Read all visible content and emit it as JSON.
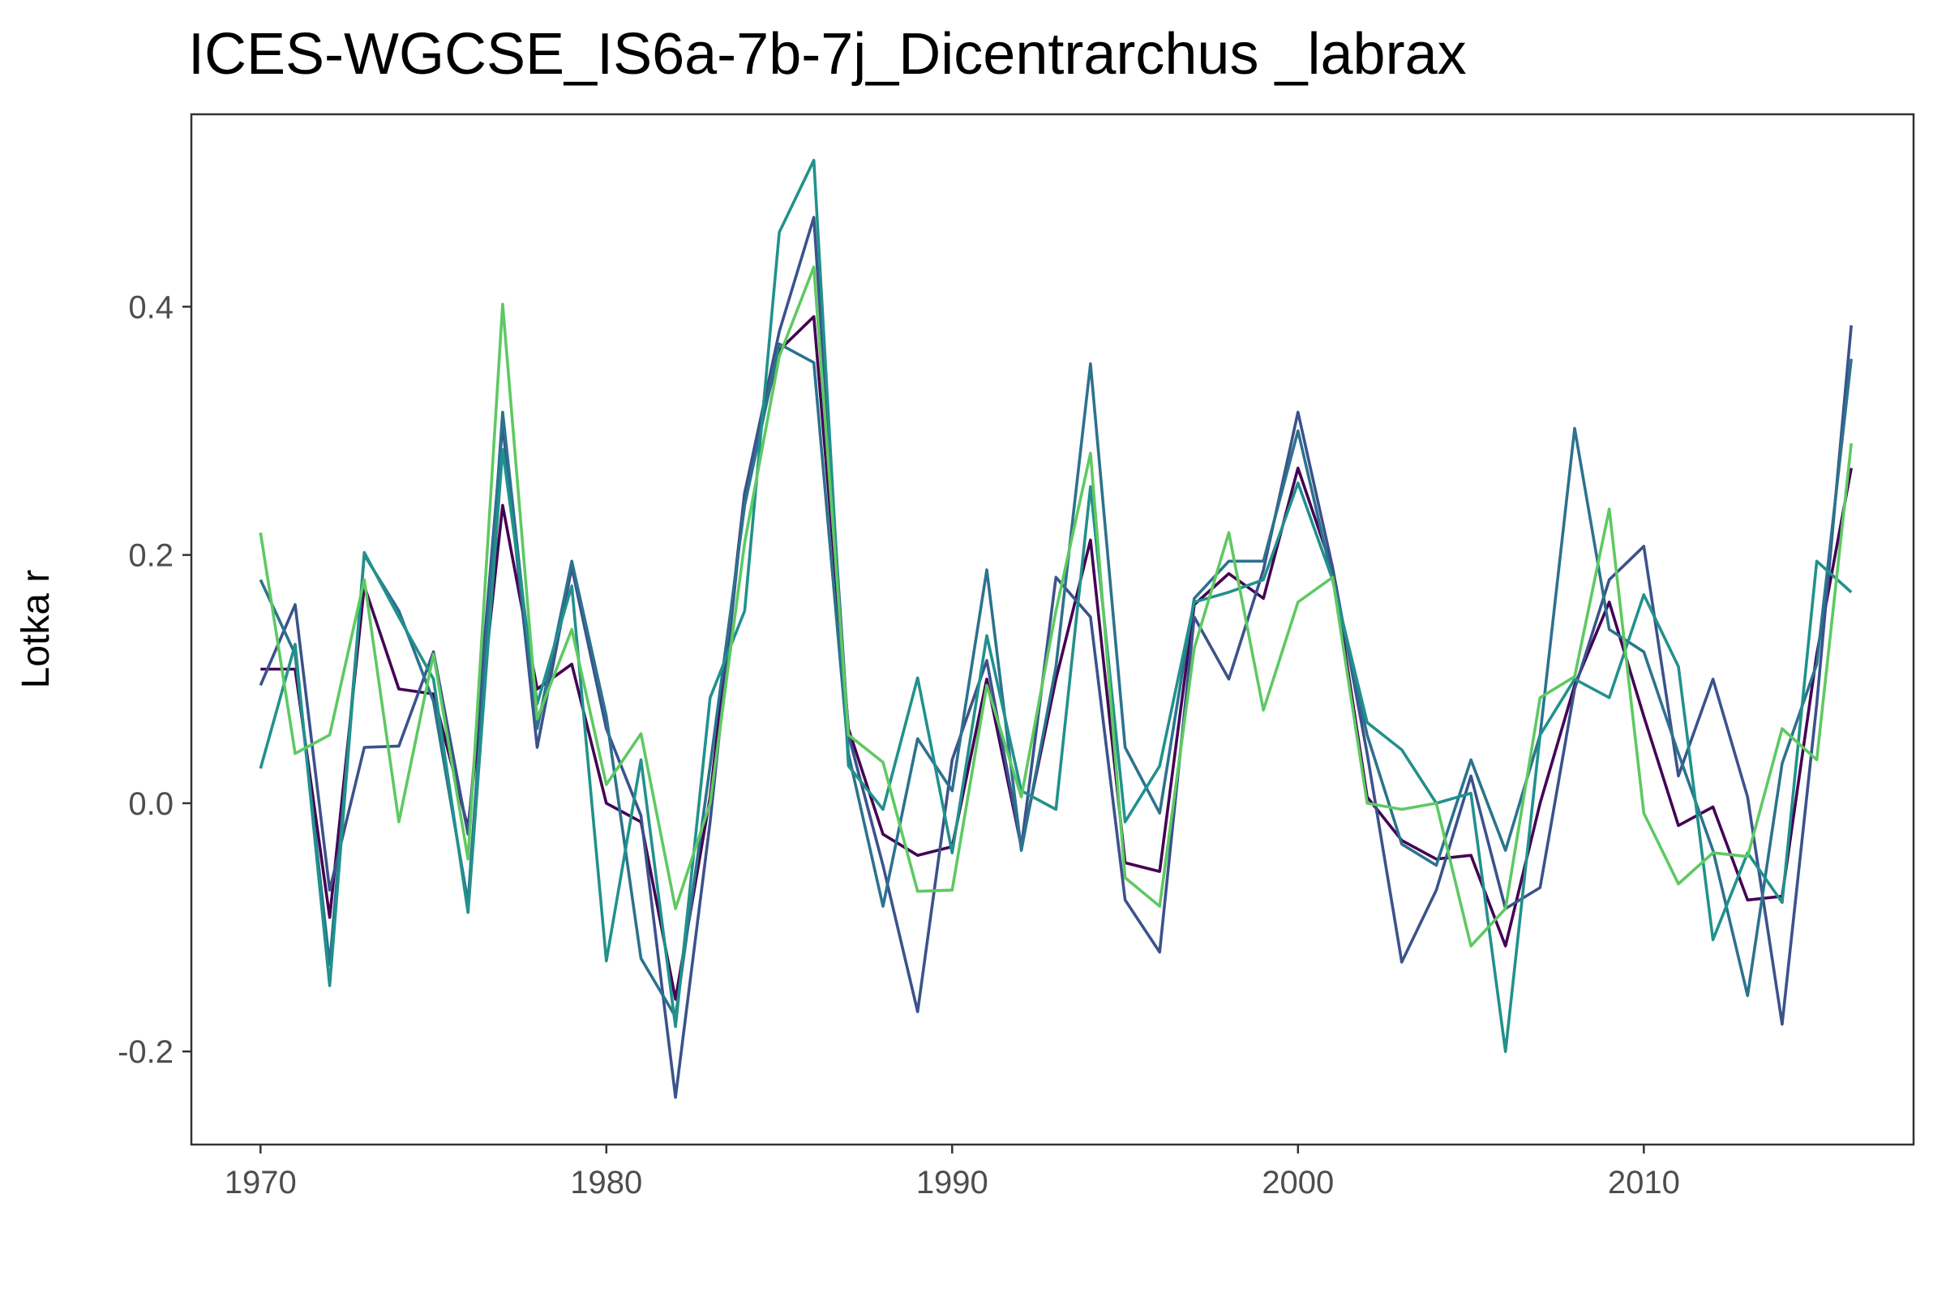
{
  "chart_data": {
    "type": "line",
    "title": "ICES-WGCSE_IS6a-7b-7j_Dicentrarchus _labrax",
    "xlabel": "",
    "ylabel": "Lotka r",
    "xlim": [
      1968,
      2017.8
    ],
    "ylim": [
      -0.275,
      0.555
    ],
    "x_ticks": [
      1970,
      1980,
      1990,
      2000,
      2010
    ],
    "y_ticks": [
      -0.2,
      0.0,
      0.2,
      0.4
    ],
    "y_tick_labels": [
      "-0.2",
      "0.0",
      "0.2",
      "0.4"
    ],
    "grid": false,
    "legend": "none",
    "x": [
      1970,
      1971,
      1972,
      1973,
      1974,
      1975,
      1976,
      1977,
      1978,
      1979,
      1980,
      1981,
      1982,
      1983,
      1984,
      1985,
      1986,
      1987,
      1988,
      1989,
      1990,
      1991,
      1992,
      1993,
      1994,
      1995,
      1996,
      1997,
      1998,
      1999,
      2000,
      2001,
      2002,
      2003,
      2004,
      2005,
      2006,
      2007,
      2008,
      2009,
      2010,
      2011,
      2012,
      2013,
      2014,
      2015,
      2016
    ],
    "series": [
      {
        "color": "#440154",
        "values": [
          0.108,
          0.108,
          -0.092,
          0.175,
          0.092,
          0.088,
          -0.02,
          0.24,
          0.092,
          0.112,
          0.0,
          -0.015,
          -0.158,
          0.005,
          0.25,
          0.365,
          0.392,
          0.06,
          -0.025,
          -0.042,
          -0.035,
          0.1,
          -0.035,
          0.1,
          0.212,
          -0.048,
          -0.055,
          0.16,
          0.185,
          0.165,
          0.27,
          0.188,
          0.005,
          -0.03,
          -0.045,
          -0.042,
          -0.115,
          0.0,
          0.095,
          0.162,
          0.07,
          -0.018,
          -0.003,
          -0.078,
          -0.075,
          0.12,
          0.27
        ]
      },
      {
        "color": "#3b528b",
        "values": [
          0.095,
          0.16,
          -0.07,
          0.045,
          0.046,
          0.122,
          -0.025,
          0.305,
          0.045,
          0.19,
          0.06,
          -0.01,
          -0.237,
          -0.015,
          0.25,
          0.38,
          0.472,
          0.055,
          -0.05,
          -0.168,
          0.035,
          0.115,
          -0.035,
          0.182,
          0.15,
          -0.078,
          -0.12,
          0.15,
          0.1,
          0.188,
          0.315,
          0.19,
          0.04,
          -0.128,
          -0.07,
          0.022,
          -0.085,
          -0.068,
          0.092,
          0.18,
          0.207,
          0.022,
          0.1,
          0.005,
          -0.178,
          0.08,
          0.385
        ]
      },
      {
        "color": "#2c728e",
        "values": [
          0.18,
          0.12,
          -0.13,
          0.2,
          0.155,
          0.082,
          -0.08,
          0.315,
          0.06,
          0.195,
          0.07,
          -0.125,
          -0.172,
          0.03,
          0.24,
          0.37,
          0.355,
          0.04,
          -0.083,
          0.052,
          0.01,
          0.188,
          -0.038,
          0.11,
          0.354,
          0.045,
          -0.008,
          0.165,
          0.195,
          0.195,
          0.3,
          0.18,
          0.055,
          -0.033,
          -0.05,
          0.035,
          -0.038,
          0.055,
          0.302,
          0.14,
          0.122,
          0.04,
          -0.038,
          -0.155,
          0.032,
          0.112,
          0.358
        ]
      },
      {
        "color": "#21918c",
        "values": [
          0.028,
          0.128,
          -0.147,
          0.202,
          0.15,
          0.1,
          -0.088,
          0.285,
          0.08,
          0.175,
          -0.127,
          0.035,
          -0.18,
          0.085,
          0.155,
          0.46,
          0.518,
          0.03,
          -0.005,
          0.101,
          -0.04,
          0.135,
          0.01,
          -0.005,
          0.255,
          -0.015,
          0.03,
          0.162,
          0.17,
          0.18,
          0.258,
          0.18,
          0.065,
          0.043,
          0.0,
          0.008,
          -0.2,
          0.055,
          0.1,
          0.085,
          0.168,
          0.11,
          -0.11,
          -0.04,
          -0.08,
          0.195,
          0.17
        ]
      },
      {
        "color": "#5ec962",
        "values": [
          0.218,
          0.04,
          0.055,
          0.18,
          -0.015,
          0.12,
          -0.045,
          0.402,
          0.068,
          0.14,
          0.015,
          0.056,
          -0.085,
          0.0,
          0.21,
          0.36,
          0.432,
          0.055,
          0.033,
          -0.071,
          -0.07,
          0.095,
          0.005,
          0.155,
          0.282,
          -0.06,
          -0.083,
          0.125,
          0.218,
          0.075,
          0.162,
          0.182,
          0.0,
          -0.005,
          0.0,
          -0.115,
          -0.085,
          0.085,
          0.102,
          0.237,
          -0.008,
          -0.065,
          -0.04,
          -0.043,
          0.06,
          0.035,
          0.29
        ]
      }
    ]
  }
}
